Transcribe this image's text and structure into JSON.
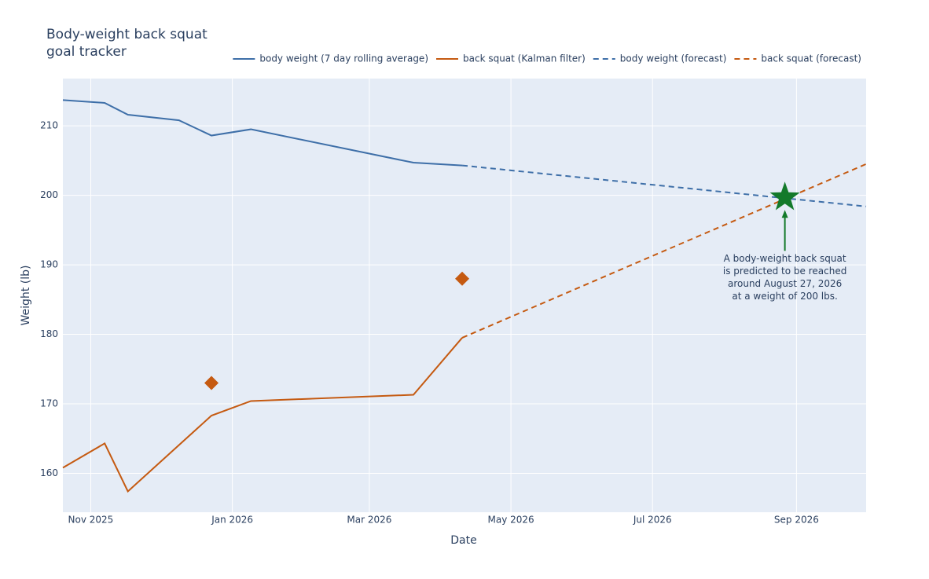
{
  "chart_data": {
    "type": "line",
    "title": [
      "Body-weight back squat",
      "goal tracker"
    ],
    "x_label": "Date",
    "y_label": "Weight (lb)",
    "xlim": [
      "2025-10-20",
      "2026-10-01"
    ],
    "xticks": [
      {
        "value": "2025-11-01",
        "label": "Nov 2025"
      },
      {
        "value": "2026-01-01",
        "label": "Jan 2026"
      },
      {
        "value": "2026-03-01",
        "label": "Mar 2026"
      },
      {
        "value": "2026-05-01",
        "label": "May 2026"
      },
      {
        "value": "2026-07-01",
        "label": "Jul 2026"
      },
      {
        "value": "2026-09-01",
        "label": "Sep 2026"
      }
    ],
    "ylim": [
      154.4,
      216.8
    ],
    "yticks": [
      160,
      170,
      180,
      190,
      200,
      210
    ],
    "grid": true,
    "legend": "top-right",
    "series": [
      {
        "name": "body weight (7 day rolling average)",
        "color": "#3e6fa8",
        "dash": false,
        "x": [
          "2025-10-20",
          "2025-11-07",
          "2025-11-17",
          "2025-12-09",
          "2025-12-23",
          "2026-01-09",
          "2026-03-20",
          "2026-04-10"
        ],
        "values": [
          213.7,
          213.3,
          211.6,
          210.8,
          208.6,
          209.5,
          204.7,
          204.3
        ]
      },
      {
        "name": "back squat (Kalman filter)",
        "color": "#c55a11",
        "dash": false,
        "x": [
          "2025-10-20",
          "2025-11-07",
          "2025-11-17",
          "2025-12-23",
          "2026-01-09",
          "2026-03-20",
          "2026-04-10"
        ],
        "values": [
          160.8,
          164.3,
          157.4,
          168.3,
          170.4,
          171.3,
          179.5
        ]
      },
      {
        "name": "body weight (forecast)",
        "color": "#3e6fa8",
        "dash": true,
        "x": [
          "2026-04-10",
          "2026-10-01"
        ],
        "values": [
          204.3,
          198.4
        ]
      },
      {
        "name": "back squat (forecast)",
        "color": "#c55a11",
        "dash": true,
        "x": [
          "2026-04-10",
          "2026-10-01"
        ],
        "values": [
          179.5,
          204.5
        ]
      }
    ],
    "points": {
      "color": "#c55a11",
      "x": [
        "2025-12-23",
        "2026-04-10"
      ],
      "values": [
        173.0,
        188.0
      ]
    },
    "goal": {
      "color": "#137a2a",
      "x": "2026-08-27",
      "value": 199.7,
      "text": [
        "A body-weight back squat",
        "is predicted to be reached",
        "around August 27, 2026",
        "at a weight of 200 lbs."
      ]
    }
  }
}
